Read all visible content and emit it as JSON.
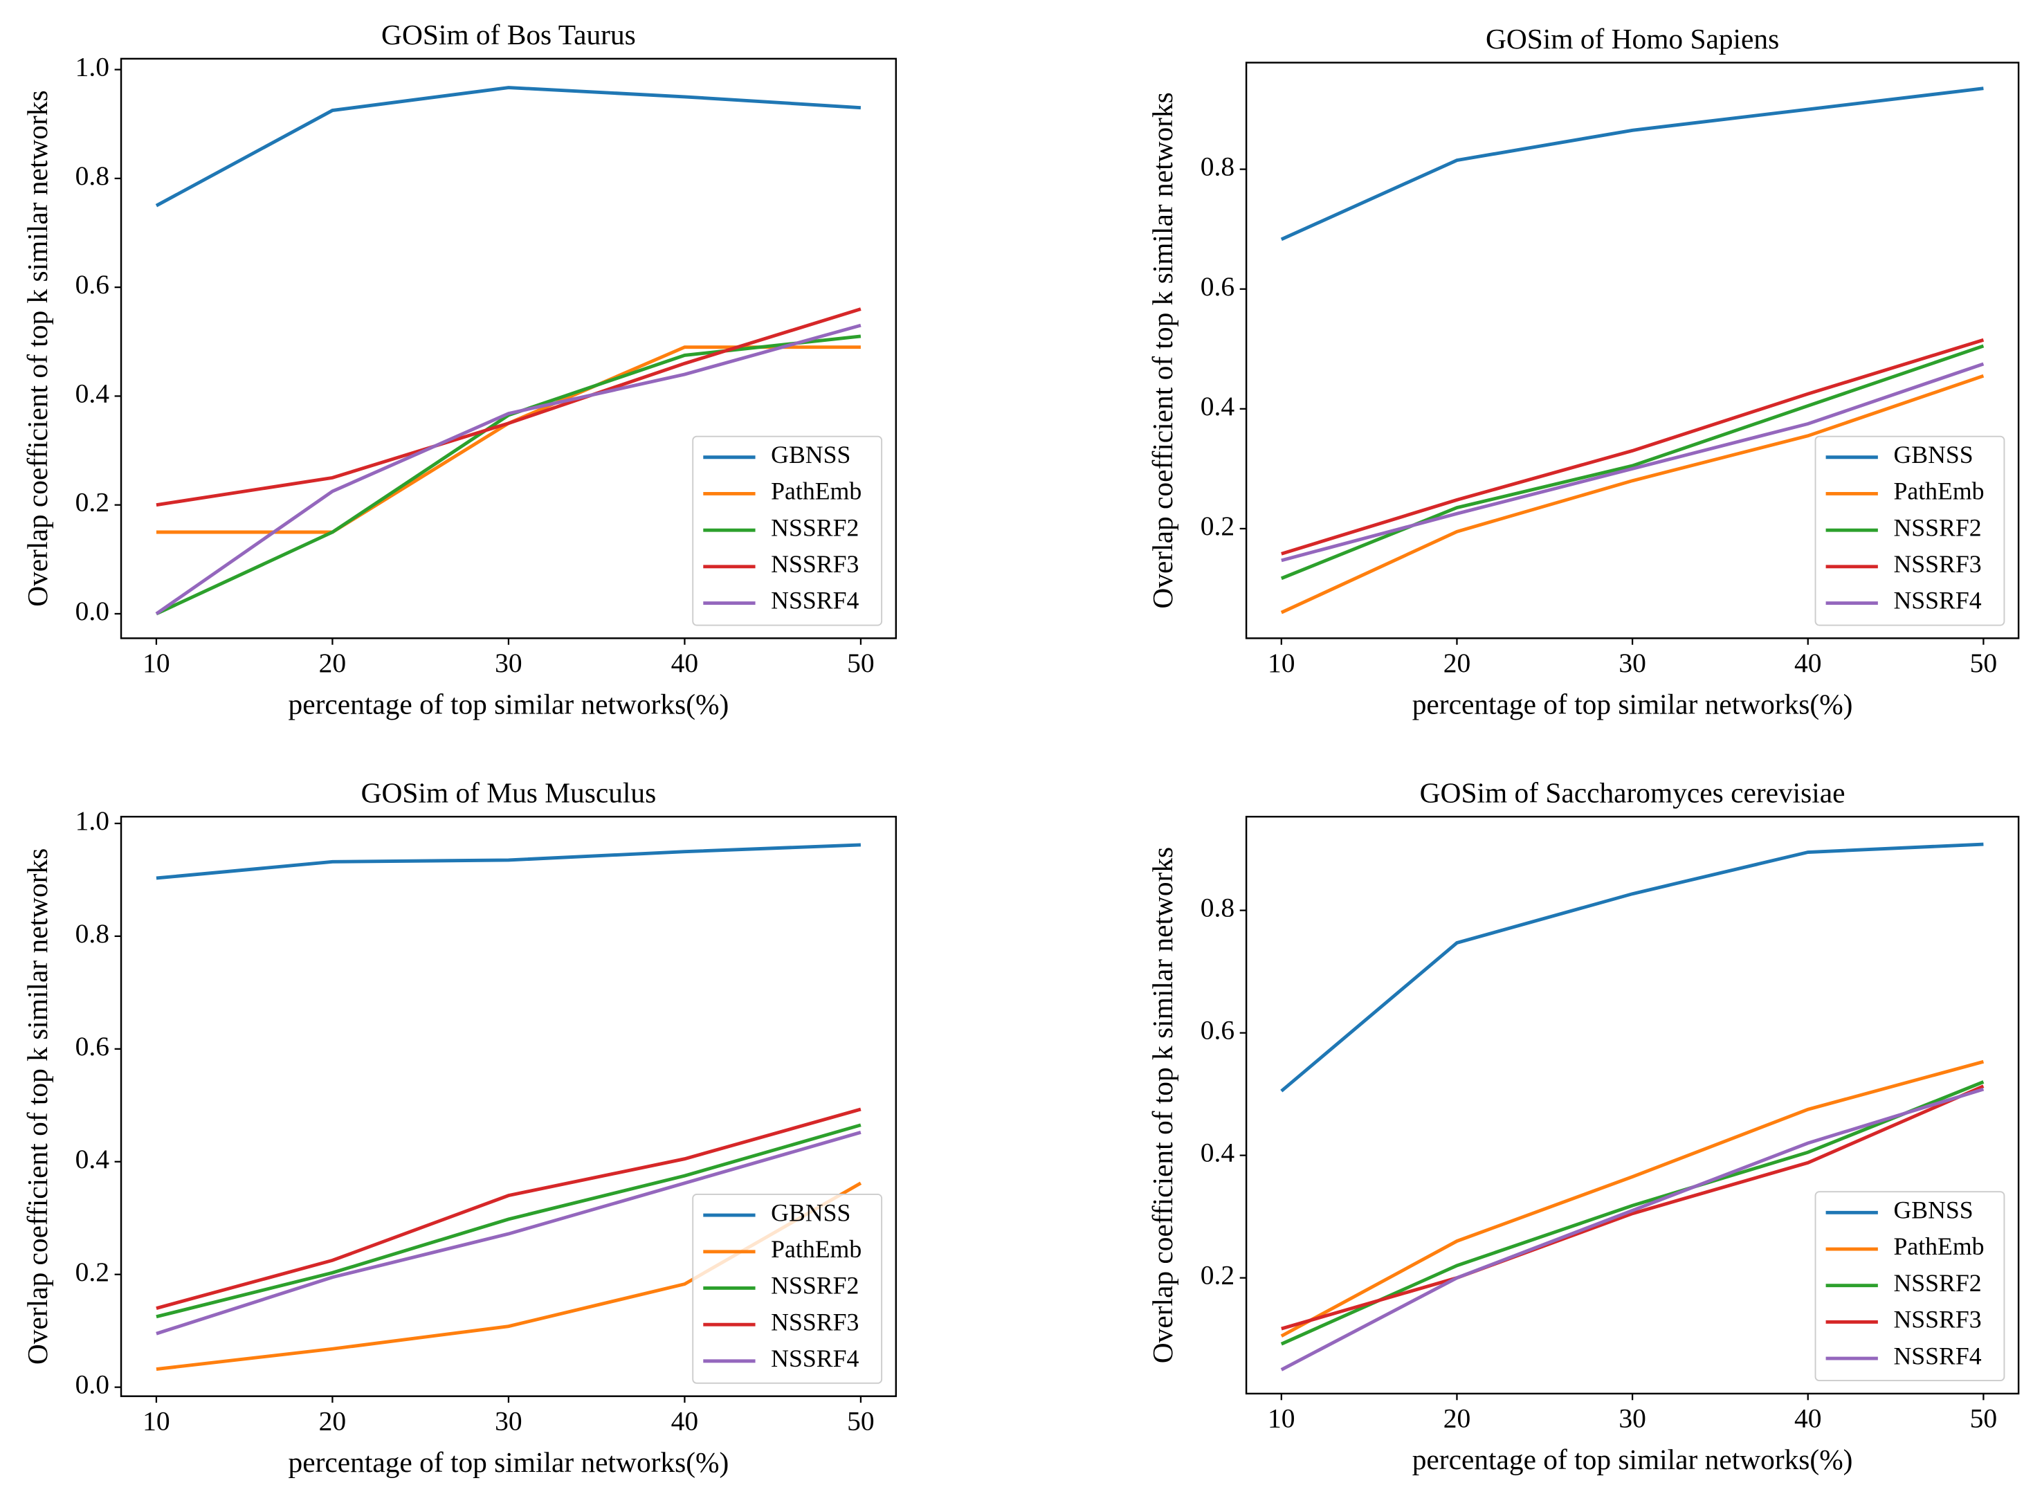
{
  "chart_data": [
    {
      "type": "line",
      "title": "GOSim of Bos Taurus",
      "xlabel": "percentage of top similar networks(%)",
      "ylabel": "Overlap coefficient of top k similar networks",
      "x": [
        10,
        20,
        30,
        40,
        50
      ],
      "xlim": [
        8,
        52
      ],
      "xticks": [
        10,
        20,
        30,
        40,
        50
      ],
      "ylim": [
        -0.045,
        1.02
      ],
      "yticks": [
        {
          "value": 0,
          "label": "0.0"
        },
        0.2,
        0.4,
        0.6,
        0.8,
        {
          "value": 1,
          "label": "1.0"
        }
      ],
      "legend": "lower right",
      "series": [
        {
          "name": "GBNSS",
          "color": "#1f77b4",
          "values": [
            0.75,
            0.925,
            0.967,
            0.95,
            0.93
          ]
        },
        {
          "name": "PathEmb",
          "color": "#ff7f0e",
          "values": [
            0.15,
            0.15,
            0.35,
            0.49,
            0.49
          ]
        },
        {
          "name": "NSSRF2",
          "color": "#2ca02c",
          "values": [
            0.0,
            0.15,
            0.365,
            0.475,
            0.51
          ]
        },
        {
          "name": "NSSRF3",
          "color": "#d62728",
          "values": [
            0.2,
            0.25,
            0.35,
            0.46,
            0.56
          ]
        },
        {
          "name": "NSSRF4",
          "color": "#9467bd",
          "values": [
            0.0,
            0.225,
            0.368,
            0.44,
            0.53
          ]
        }
      ]
    },
    {
      "type": "line",
      "title": "GOSim of Homo Sapiens",
      "xlabel": "percentage of top similar networks(%)",
      "ylabel": "Overlap coefficient of top k similar networks",
      "x": [
        10,
        20,
        30,
        40,
        50
      ],
      "xlim": [
        8,
        52
      ],
      "xticks": [
        10,
        20,
        30,
        40,
        50
      ],
      "ylim": [
        0.017,
        0.978
      ],
      "yticks": [
        0.2,
        0.4,
        0.6,
        0.8
      ],
      "legend": "lower right",
      "series": [
        {
          "name": "GBNSS",
          "color": "#1f77b4",
          "values": [
            0.683,
            0.815,
            0.865,
            0.9,
            0.935
          ]
        },
        {
          "name": "PathEmb",
          "color": "#ff7f0e",
          "values": [
            0.06,
            0.195,
            0.28,
            0.355,
            0.455
          ]
        },
        {
          "name": "NSSRF2",
          "color": "#2ca02c",
          "values": [
            0.117,
            0.235,
            0.305,
            0.405,
            0.505
          ]
        },
        {
          "name": "NSSRF3",
          "color": "#d62728",
          "values": [
            0.158,
            0.248,
            0.33,
            0.425,
            0.515
          ]
        },
        {
          "name": "NSSRF4",
          "color": "#9467bd",
          "values": [
            0.147,
            0.225,
            0.3,
            0.375,
            0.475
          ]
        }
      ]
    },
    {
      "type": "line",
      "title": "GOSim of Mus Musculus",
      "xlabel": "percentage of top similar networks(%)",
      "ylabel": "Overlap coefficient of top k similar networks",
      "x": [
        10,
        20,
        30,
        40,
        50
      ],
      "xlim": [
        8,
        52
      ],
      "xticks": [
        10,
        20,
        30,
        40,
        50
      ],
      "ylim": [
        -0.016,
        1.012
      ],
      "yticks": [
        {
          "value": 0,
          "label": "0.0"
        },
        0.2,
        0.4,
        0.6,
        0.8,
        {
          "value": 1,
          "label": "1.0"
        }
      ],
      "legend": "lower right",
      "series": [
        {
          "name": "GBNSS",
          "color": "#1f77b4",
          "values": [
            0.903,
            0.932,
            0.935,
            0.95,
            0.962
          ]
        },
        {
          "name": "PathEmb",
          "color": "#ff7f0e",
          "values": [
            0.032,
            0.068,
            0.108,
            0.183,
            0.362
          ]
        },
        {
          "name": "NSSRF2",
          "color": "#2ca02c",
          "values": [
            0.125,
            0.203,
            0.298,
            0.375,
            0.465
          ]
        },
        {
          "name": "NSSRF3",
          "color": "#d62728",
          "values": [
            0.14,
            0.225,
            0.34,
            0.405,
            0.493
          ]
        },
        {
          "name": "NSSRF4",
          "color": "#9467bd",
          "values": [
            0.095,
            0.195,
            0.272,
            0.362,
            0.452
          ]
        }
      ]
    },
    {
      "type": "line",
      "title": "GOSim of Saccharomyces cerevisiae",
      "xlabel": "percentage of top similar networks(%)",
      "ylabel": "Overlap coefficient of top k similar networks",
      "x": [
        10,
        20,
        30,
        40,
        50
      ],
      "xlim": [
        8,
        52
      ],
      "xticks": [
        10,
        20,
        30,
        40,
        50
      ],
      "ylim": [
        0.011,
        0.953
      ],
      "yticks": [
        0.2,
        0.4,
        0.6,
        0.8
      ],
      "legend": "lower right",
      "series": [
        {
          "name": "GBNSS",
          "color": "#1f77b4",
          "values": [
            0.505,
            0.747,
            0.827,
            0.895,
            0.908
          ]
        },
        {
          "name": "PathEmb",
          "color": "#ff7f0e",
          "values": [
            0.105,
            0.26,
            0.365,
            0.475,
            0.553
          ]
        },
        {
          "name": "NSSRF2",
          "color": "#2ca02c",
          "values": [
            0.092,
            0.22,
            0.318,
            0.405,
            0.52
          ]
        },
        {
          "name": "NSSRF3",
          "color": "#d62728",
          "values": [
            0.117,
            0.2,
            0.305,
            0.388,
            0.513
          ]
        },
        {
          "name": "NSSRF4",
          "color": "#9467bd",
          "values": [
            0.05,
            0.2,
            0.31,
            0.42,
            0.508
          ]
        }
      ]
    }
  ]
}
